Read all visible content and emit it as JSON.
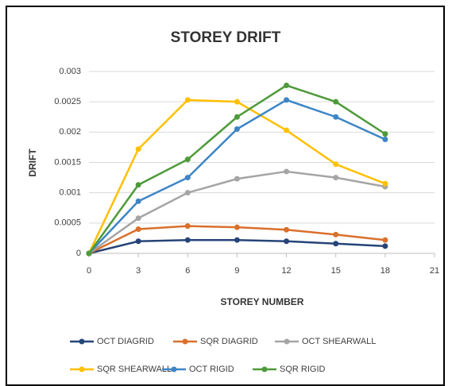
{
  "chart_data": {
    "type": "line",
    "title": "STOREY DRIFT",
    "x_label": "STOREY NUMBER",
    "y_label": "DRIFT",
    "x": [
      0,
      3,
      6,
      9,
      12,
      15,
      18
    ],
    "xlim": [
      0,
      21
    ],
    "xticks": [
      0,
      3,
      6,
      9,
      12,
      15,
      18,
      21
    ],
    "ylim": [
      0,
      0.003
    ],
    "yticks": [
      0,
      0.0005,
      0.001,
      0.0015,
      0.002,
      0.0025,
      0.003
    ],
    "grid": true,
    "series": [
      {
        "name": "OCT DIAGRID",
        "color": "#264478",
        "values": [
          0,
          0.0002,
          0.00022,
          0.00022,
          0.0002,
          0.00016,
          0.00012
        ]
      },
      {
        "name": "SQR DIAGRID",
        "color": "#d9702b",
        "values": [
          0,
          0.0004,
          0.00045,
          0.00043,
          0.00039,
          0.00031,
          0.00022
        ]
      },
      {
        "name": "OCT SHEARWALL",
        "color": "#a5a5a5",
        "values": [
          0,
          0.00058,
          0.001,
          0.00123,
          0.00135,
          0.00125,
          0.0011
        ]
      },
      {
        "name": "SQR SHEARWALL",
        "color": "#ffc000",
        "values": [
          0,
          0.00172,
          0.00253,
          0.0025,
          0.00203,
          0.00147,
          0.00115
        ]
      },
      {
        "name": "OCT RIGID",
        "color": "#3d85c6",
        "values": [
          0,
          0.00086,
          0.00125,
          0.00205,
          0.00253,
          0.00225,
          0.00188
        ]
      },
      {
        "name": "SQR RIGID",
        "color": "#4e9a3a",
        "values": [
          0,
          0.00113,
          0.00155,
          0.00225,
          0.00277,
          0.0025,
          0.00197
        ]
      }
    ]
  }
}
